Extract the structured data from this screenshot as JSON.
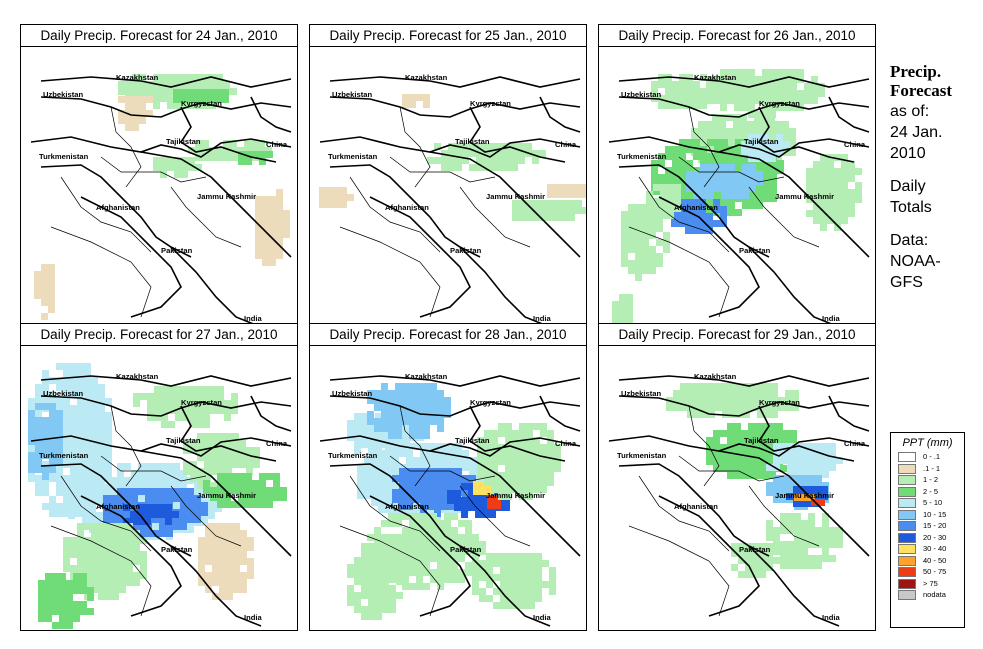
{
  "panels": [
    {
      "title": "Daily Precip. Forecast for  24 Jan., 2010",
      "level": 1
    },
    {
      "title": "Daily Precip. Forecast for  25 Jan., 2010",
      "level": 0
    },
    {
      "title": "Daily Precip. Forecast for  26 Jan., 2010",
      "level": 2
    },
    {
      "title": "Daily Precip. Forecast for  27 Jan., 2010",
      "level": 3
    },
    {
      "title": "Daily Precip. Forecast for  28 Jan., 2010",
      "level": 4
    },
    {
      "title": "Daily Precip. Forecast for  29 Jan., 2010",
      "level": 5
    }
  ],
  "map_labels": {
    "kazakhstan": "Kazakhstan",
    "uzbekistan": "Uzbekistan",
    "kyrgyzstan": "Kyrgyzstan",
    "tajikistan": "Tajikistan",
    "turkmenistan": "Turkmenistan",
    "china": "China",
    "afghanistan": "Afghanistan",
    "jammu_kashmir": "Jammu Kashmir",
    "pakistan": "Pakistan",
    "india": "India"
  },
  "side": {
    "title_line1": "Precip.",
    "title_line2": "Forecast",
    "asof_line1": "as of:",
    "asof_line2": "24 Jan.",
    "asof_line3": "2010",
    "totals_line1": "Daily",
    "totals_line2": "Totals",
    "data_line1": "Data:",
    "data_line2": "NOAA-",
    "data_line3": "GFS"
  },
  "legend": {
    "title": "PPT (mm)",
    "items": [
      {
        "label": "0 - .1",
        "color": "#ffffff"
      },
      {
        "label": ".1 - 1",
        "color": "#ecdcbc"
      },
      {
        "label": "1 - 2",
        "color": "#b4eeb4"
      },
      {
        "label": "2 - 5",
        "color": "#70dc78"
      },
      {
        "label": "5 - 10",
        "color": "#bceaf4"
      },
      {
        "label": "10 - 15",
        "color": "#82c8f4"
      },
      {
        "label": "15 - 20",
        "color": "#4a8cf0"
      },
      {
        "label": "20 - 30",
        "color": "#1e5adc"
      },
      {
        "label": "30 - 40",
        "color": "#ffe060"
      },
      {
        "label": "40 - 50",
        "color": "#ffa028"
      },
      {
        "label": "50 - 75",
        "color": "#f03c14"
      },
      {
        "label": "> 75",
        "color": "#a01414"
      },
      {
        "label": "nodata",
        "color": "#c8c8c8"
      }
    ]
  }
}
